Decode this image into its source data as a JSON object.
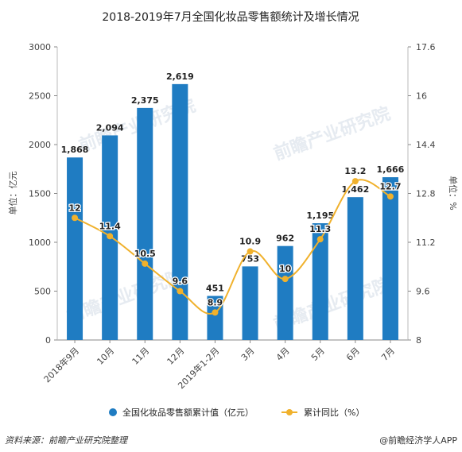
{
  "chart_data": {
    "type": "bar",
    "title": "2018-2019年7月全国化妆品零售额统计及增长情况",
    "categories": [
      "2018年9月",
      "10月",
      "11月",
      "12月",
      "2019年1-2月",
      "3月",
      "4月",
      "5月",
      "6月",
      "7月"
    ],
    "series": [
      {
        "name": "全国化妆品零售额累计值（亿元）",
        "type": "bar",
        "axis": "left",
        "color": "#1f7cc2",
        "values": [
          1868,
          2094,
          2375,
          2619,
          451,
          753,
          962,
          1195,
          1462,
          1666
        ],
        "labels": [
          "1,868",
          "2,094",
          "2,375",
          "2,619",
          "451",
          "753",
          "962",
          "1,195",
          "1,462",
          "1,666"
        ]
      },
      {
        "name": "累计同比（%）",
        "type": "line",
        "axis": "right",
        "color": "#f0b12c",
        "values": [
          12,
          11.4,
          10.5,
          9.6,
          8.9,
          10.9,
          10,
          11.3,
          13.2,
          12.7
        ],
        "labels": [
          "12",
          "11.4",
          "10.5",
          "9.6",
          "8.9",
          "10.9",
          "10",
          "11.3",
          "13.2",
          "12.7"
        ]
      }
    ],
    "ylabel": "单位：亿元",
    "y2label": "单位：%",
    "ylim": [
      0,
      3000
    ],
    "y2lim": [
      8,
      17.6
    ],
    "yticks": [
      "0",
      "500",
      "1000",
      "1500",
      "2000",
      "2500",
      "3000"
    ],
    "y2ticks": [
      "8",
      "9.6",
      "11.2",
      "12.8",
      "14.4",
      "16",
      "17.6"
    ],
    "legend_position": "bottom",
    "grid": false
  },
  "footer": {
    "source": "资料来源：前瞻产业研究院整理",
    "brand": "@前瞻经济学人APP"
  },
  "watermark": "前瞻产业研究院"
}
